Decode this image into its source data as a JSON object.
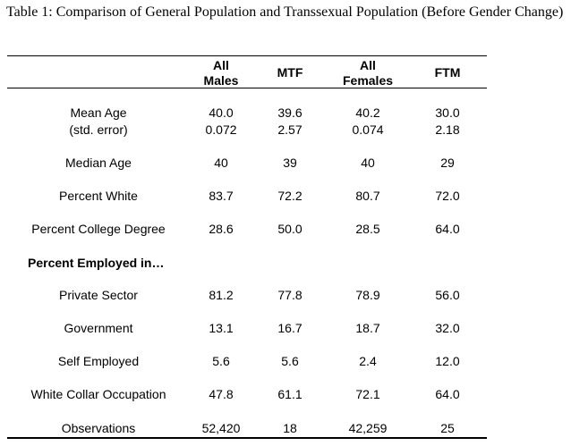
{
  "caption": "Table 1: Comparison of General Population and Transsexual Population (Before Gender Change)",
  "columns": [
    {
      "line1": "All",
      "line2": "Males"
    },
    {
      "line1": "",
      "line2": "MTF"
    },
    {
      "line1": "All",
      "line2": "Females"
    },
    {
      "line1": "",
      "line2": "FTM"
    }
  ],
  "rows": [
    {
      "label": "Mean Age",
      "values": [
        "40.0",
        "39.6",
        "40.2",
        "30.0"
      ]
    },
    {
      "label": "(std. error)",
      "values": [
        "0.072",
        "2.57",
        "0.074",
        "2.18"
      ]
    },
    {
      "label": "Median Age",
      "values": [
        "40",
        "39",
        "40",
        "29"
      ]
    },
    {
      "label": "Percent White",
      "values": [
        "83.7",
        "72.2",
        "80.7",
        "72.0"
      ]
    },
    {
      "label": "Percent College Degree",
      "values": [
        "28.6",
        "50.0",
        "28.5",
        "64.0"
      ]
    },
    {
      "label": "Percent Employed in…",
      "section": true,
      "values": []
    },
    {
      "label": "Private Sector",
      "values": [
        "81.2",
        "77.8",
        "78.9",
        "56.0"
      ]
    },
    {
      "label": "Government",
      "values": [
        "13.1",
        "16.7",
        "18.7",
        "32.0"
      ]
    },
    {
      "label": "Self Employed",
      "values": [
        "5.6",
        "5.6",
        "2.4",
        "12.0"
      ]
    },
    {
      "label": "White Collar Occupation",
      "values": [
        "47.8",
        "61.1",
        "72.1",
        "64.0"
      ]
    },
    {
      "label": "Observations",
      "values": [
        "52,420",
        "18",
        "42,259",
        "25"
      ]
    }
  ]
}
